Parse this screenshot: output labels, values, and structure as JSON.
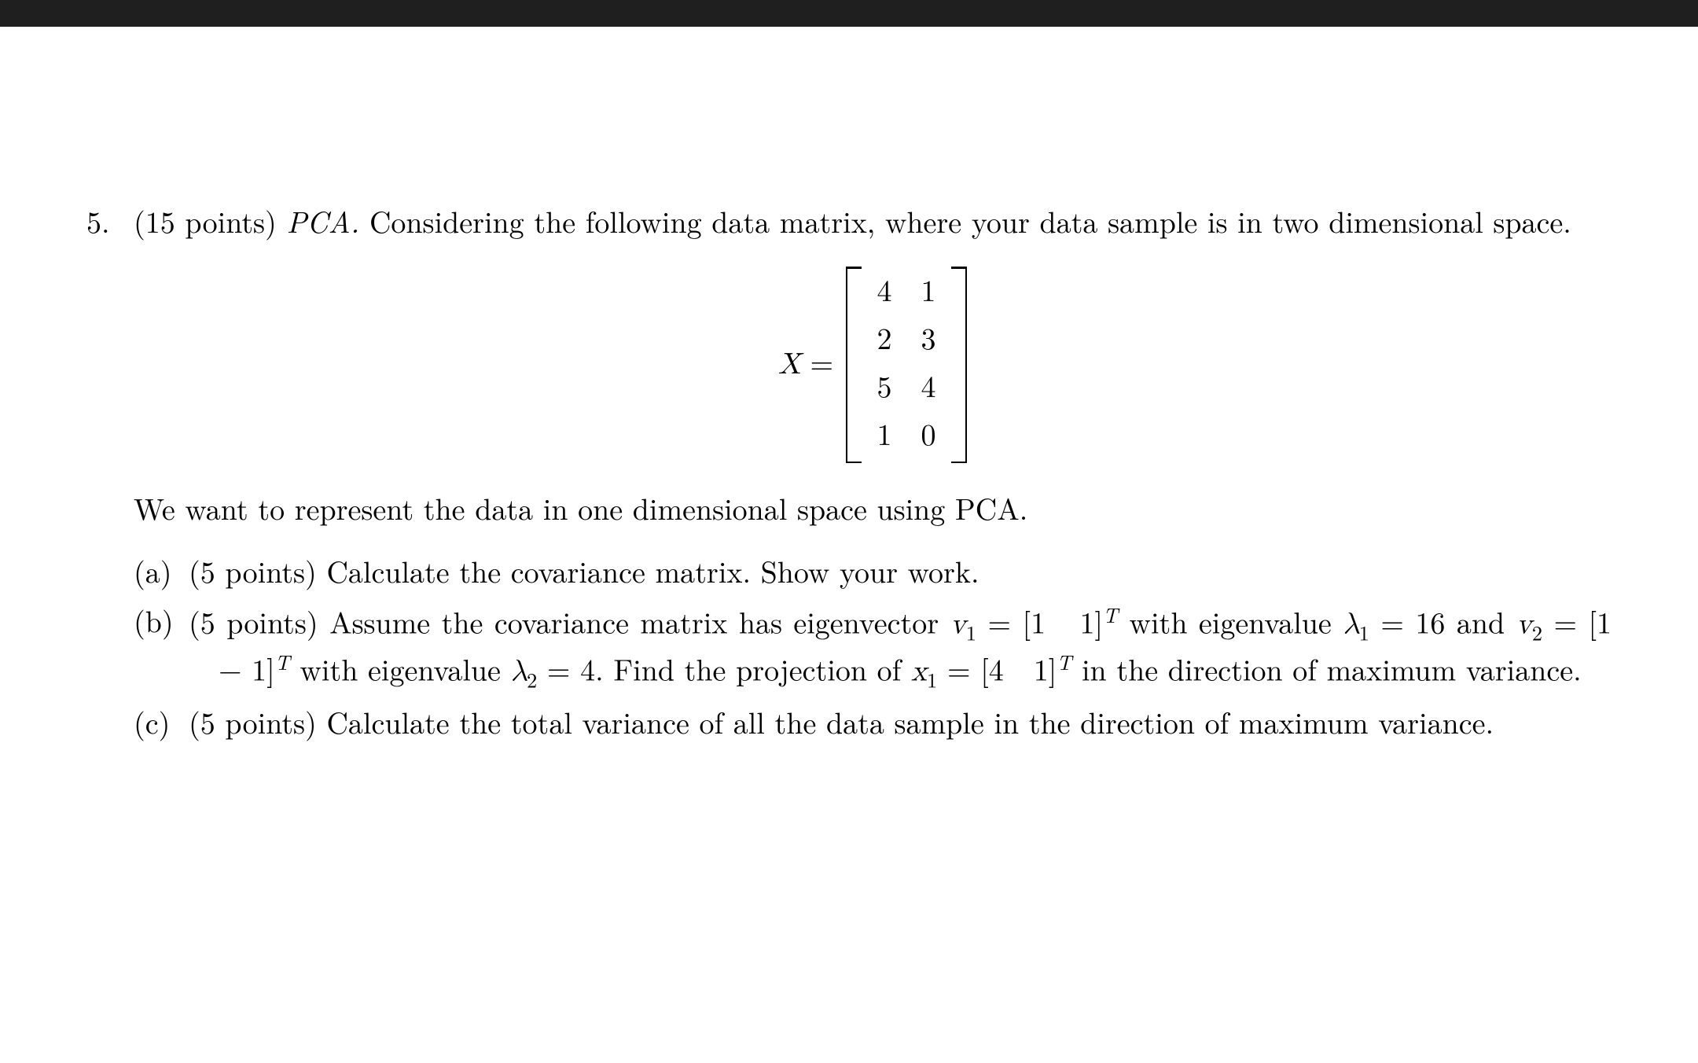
{
  "problem_number": "5.",
  "points_total": "(15 points)",
  "title": "PCA.",
  "intro_text_1": " Considering the following data matrix, where your data sample is in two dimensional space.",
  "matrix": {
    "symbol": "X",
    "equals": "=",
    "rows": [
      [
        "4",
        "1"
      ],
      [
        "2",
        "3"
      ],
      [
        "5",
        "4"
      ],
      [
        "1",
        "0"
      ]
    ]
  },
  "after_matrix": "We want to represent the data in one dimensional space using PCA.",
  "parts": {
    "a": {
      "label": "(a)",
      "points": "(5 points)",
      "text": " Calculate the covariance matrix. Show your work."
    },
    "b": {
      "label": "(b)",
      "points": "(5 points)",
      "pre": " Assume the covariance matrix has eigenvector ",
      "v1_sym": "v",
      "v1_sub": "1",
      "eq": " = ",
      "v1_vec_open": "[1",
      "v1_vec_mid": "   1]",
      "T": "T",
      "with_eig": " with eigenvalue ",
      "lam1_sym": "λ",
      "lam1_sub": "1",
      "lam1_val": " = 16 and ",
      "v2_sym": "v",
      "v2_sub": "2",
      "v2_vec_open": "[1",
      "v2_vec_mid": "   − 1]",
      "with_eig2": " with eigenvalue ",
      "lam2_sym": "λ",
      "lam2_sub": "2",
      "lam2_val": " = 4. Find the projection of ",
      "x1_sym": "x",
      "x1_sub": "1",
      "x1_vec_open": "[4",
      "x1_vec_mid": "   1]",
      "tail": " in the direction of maximum variance."
    },
    "c": {
      "label": "(c)",
      "points": "(5 points)",
      "text": " Calculate the total variance of all the data sample in the direction of maximum variance."
    }
  }
}
